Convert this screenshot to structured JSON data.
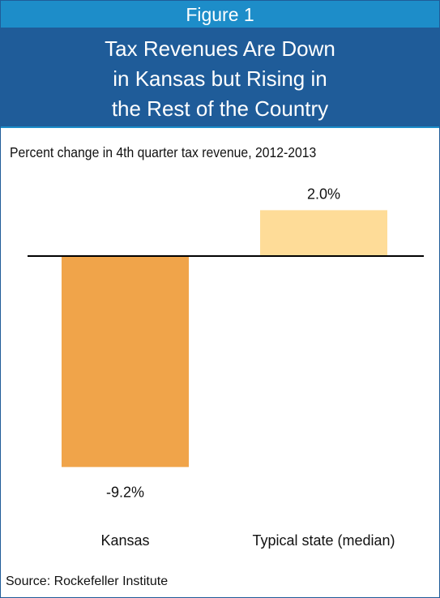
{
  "figure_label": "Figure 1",
  "title": "Tax Revenues Are Down\nin Kansas but Rising in\nthe Rest of the Country",
  "source": "Source: Rockefeller Institute",
  "colors": {
    "header_blue": "#1d8dc9",
    "title_blue": "#1f5c99",
    "kansas_bar": "#f0a44a",
    "typical_bar": "#fedc98"
  },
  "chart_data": {
    "type": "bar",
    "title": "Percent change in 4th quarter tax revenue, 2012-2013",
    "categories": [
      "Kansas",
      "Typical state (median)"
    ],
    "values": [
      -9.2,
      2.0
    ],
    "data_labels": [
      "-9.2%",
      "2.0%"
    ],
    "unit": "%",
    "ylim": [
      -9.2,
      2.0
    ],
    "grid": false,
    "legend": "none",
    "zero_line": true
  }
}
